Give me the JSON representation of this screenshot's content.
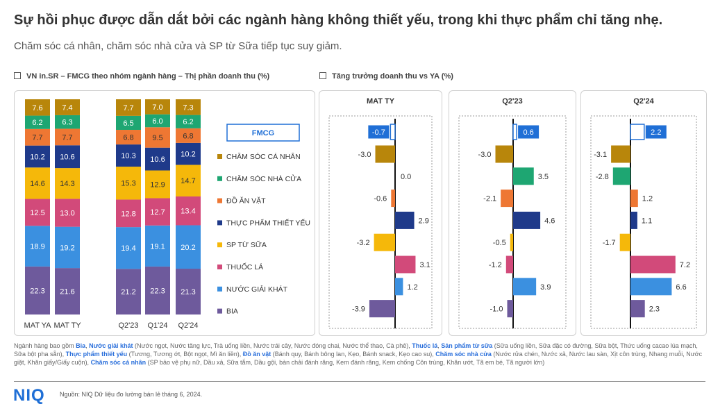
{
  "header": {
    "title": "Sự hồi phục được dẫn dắt bởi các ngành hàng không thiết yếu, trong khi thực phẩm chỉ tăng nhẹ.",
    "subtitle": "Chăm sóc cá nhân, chăm sóc nhà cửa và SP từ Sữa tiếp tục suy giảm."
  },
  "sections": {
    "left_title": "VN in.SR – FMCG theo nhóm ngành hàng – Thị phần doanh thu (%)",
    "right_title": "Tăng trưởng doanh thu vs YA (%)"
  },
  "colors": {
    "cham_soc_ca_nhan": "#B8860B",
    "cham_soc_nha_cua": "#1EA672",
    "do_an_vat": "#EE7733",
    "thuc_pham_thiet_yeu": "#1F3A8A",
    "sp_tu_sua": "#F5B80A",
    "thuoc_la": "#D24A7A",
    "nuoc_giai_khat": "#3B90E0",
    "bia": "#6E5A9C",
    "fmcg_accent": "#1F6FD6"
  },
  "legend": {
    "header": "FMCG",
    "items": [
      {
        "label": "CHĂM SÓC CÁ NHÂN",
        "color": "#B8860B"
      },
      {
        "label": "CHĂM SÓC NHÀ CỬA",
        "color": "#1EA672"
      },
      {
        "label": "ĐỒ ĂN VẶT",
        "color": "#EE7733"
      },
      {
        "label": "THỰC PHẨM THIẾT YẾU",
        "color": "#1F3A8A"
      },
      {
        "label": "SP TỪ SỮA",
        "color": "#F5B80A"
      },
      {
        "label": "THUỐC LÁ",
        "color": "#D24A7A"
      },
      {
        "label": "NƯỚC GIẢI KHÁT",
        "color": "#3B90E0"
      },
      {
        "label": "BIA",
        "color": "#6E5A9C"
      }
    ]
  },
  "chart_data": [
    {
      "type": "bar",
      "stacked": true,
      "title": "VN in.SR – FMCG theo nhóm ngành hàng – Thị phần doanh thu (%)",
      "categories": [
        "MAT YA",
        "MAT TY",
        "Q2'23",
        "Q1'24",
        "Q2'24"
      ],
      "series_order_bottom_to_top": [
        "BIA",
        "NƯỚC GIẢI KHÁT",
        "THUỐC LÁ",
        "SP TỪ SỮA",
        "THỰC PHẨM THIẾT YẾU",
        "ĐỒ ĂN VẶT",
        "CHĂM SÓC NHÀ CỬA",
        "CHĂM SÓC CÁ NHÂN"
      ],
      "series": [
        {
          "name": "BIA",
          "color": "#6E5A9C",
          "text_color": "#ffffff",
          "values": [
            22.3,
            21.6,
            21.2,
            22.3,
            21.3
          ]
        },
        {
          "name": "NƯỚC GIẢI KHÁT",
          "color": "#3B90E0",
          "text_color": "#ffffff",
          "values": [
            18.9,
            19.2,
            19.4,
            19.1,
            20.2
          ]
        },
        {
          "name": "THUỐC LÁ",
          "color": "#D24A7A",
          "text_color": "#ffffff",
          "values": [
            12.5,
            13.0,
            12.8,
            12.7,
            13.4
          ]
        },
        {
          "name": "SP TỪ SỮA",
          "color": "#F5B80A",
          "text_color": "#333333",
          "values": [
            14.6,
            14.3,
            15.3,
            12.9,
            14.7
          ]
        },
        {
          "name": "THỰC PHẨM THIẾT YẾU",
          "color": "#1F3A8A",
          "text_color": "#ffffff",
          "values": [
            10.2,
            10.6,
            10.3,
            10.6,
            10.2
          ]
        },
        {
          "name": "ĐỒ ĂN VẶT",
          "color": "#EE7733",
          "text_color": "#333333",
          "values": [
            7.7,
            7.7,
            6.8,
            9.5,
            6.8
          ]
        },
        {
          "name": "CHĂM SÓC NHÀ CỬA",
          "color": "#1EA672",
          "text_color": "#ffffff",
          "values": [
            6.2,
            6.3,
            6.5,
            6.0,
            6.2
          ]
        },
        {
          "name": "CHĂM SÓC CÁ NHÂN",
          "color": "#B8860B",
          "text_color": "#ffffff",
          "values": [
            7.6,
            7.4,
            7.7,
            7.0,
            7.3
          ]
        }
      ],
      "ylim": [
        0,
        100
      ],
      "legend": "right"
    },
    {
      "type": "bar",
      "orientation": "horizontal",
      "title": "MAT TY",
      "total_label": "FMCG",
      "total": -0.7,
      "categories": [
        "CHĂM SÓC CÁ NHÂN",
        "CHĂM SÓC NHÀ CỬA",
        "ĐỒ ĂN VẶT",
        "THỰC PHẨM THIẾT YẾU",
        "SP TỪ SỮA",
        "THUỐC LÁ",
        "NƯỚC GIẢI KHÁT",
        "BIA"
      ],
      "values": [
        -3.0,
        0.0,
        -0.6,
        2.9,
        -3.2,
        3.1,
        1.2,
        -3.9
      ],
      "xlim": [
        -4,
        4
      ]
    },
    {
      "type": "bar",
      "orientation": "horizontal",
      "title": "Q2'23",
      "total_label": "FMCG",
      "total": 0.6,
      "categories": [
        "CHĂM SÓC CÁ NHÂN",
        "CHĂM SÓC NHÀ CỬA",
        "ĐỒ ĂN VẶT",
        "THỰC PHẨM THIẾT YẾU",
        "SP TỪ SỮA",
        "THUỐC LÁ",
        "NƯỚC GIẢI KHÁT",
        "BIA"
      ],
      "values": [
        -3.0,
        3.5,
        -2.1,
        4.6,
        -0.5,
        -1.2,
        3.9,
        -1.0
      ],
      "xlim": [
        -5,
        5
      ]
    },
    {
      "type": "bar",
      "orientation": "horizontal",
      "title": "Q2'24",
      "total_label": "FMCG",
      "total": 2.2,
      "categories": [
        "CHĂM SÓC CÁ NHÂN",
        "CHĂM SÓC NHÀ CỬA",
        "ĐỒ ĂN VẶT",
        "THỰC PHẨM THIẾT YẾU",
        "SP TỪ SỮA",
        "THUỐC LÁ",
        "NƯỚC GIẢI KHÁT",
        "BIA"
      ],
      "values": [
        -3.1,
        -2.8,
        1.2,
        1.1,
        -1.7,
        7.2,
        6.6,
        2.3
      ],
      "xlim": [
        -8,
        8
      ]
    }
  ],
  "footnote": [
    {
      "text": "Ngành hàng bao gồm ",
      "hl": false
    },
    {
      "text": "Bia",
      "hl": true
    },
    {
      "text": ", ",
      "hl": false
    },
    {
      "text": "Nước giải khát",
      "hl": true
    },
    {
      "text": " (Nước ngọt, Nước tăng lực, Trà uống liền, Nước trái cây, Nước đóng chai, Nước thể thao, Cà phê), ",
      "hl": false
    },
    {
      "text": "Thuốc lá",
      "hl": true
    },
    {
      "text": ", ",
      "hl": false
    },
    {
      "text": "Sản phẩm từ sữa",
      "hl": true
    },
    {
      "text": " (Sữa uống liền, Sữa đặc có đường, Sữa bột, Thức uống cacao lúa mạch, Sữa bột pha sẵn), ",
      "hl": false
    },
    {
      "text": "Thực phẩm thiết yếu",
      "hl": true
    },
    {
      "text": " (Tương, Tương ớt, Bột ngọt, Mì ăn liền), ",
      "hl": false
    },
    {
      "text": "Đồ ăn vặt",
      "hl": true
    },
    {
      "text": " (Bánh quy, Bánh bông lan, Kẹo, Bánh snack, Kẹo cao su), ",
      "hl": false
    },
    {
      "text": "Chăm sóc nhà cửa",
      "hl": true
    },
    {
      "text": " (Nước rửa chén, Nước xả, Nước lau sàn, Xịt côn trùng, Nhang muỗi, Nước giặt, Khăn giấy/Giấy cuộn), ",
      "hl": false
    },
    {
      "text": "Chăm sóc cá nhân",
      "hl": true
    },
    {
      "text": " (SP bảo vệ phụ nữ, Dầu xả, Sữa tắm, Dầu gội, bàn chải đánh răng, Kem đánh răng, Kem chống Côn trùng, Khăn ướt, Tã em bé, Tã người lớn)",
      "hl": false
    }
  ],
  "logo": "NIQ",
  "source": "Nguồn: NIQ Dữ liệu đo lường bán lẻ tháng 6, 2024."
}
